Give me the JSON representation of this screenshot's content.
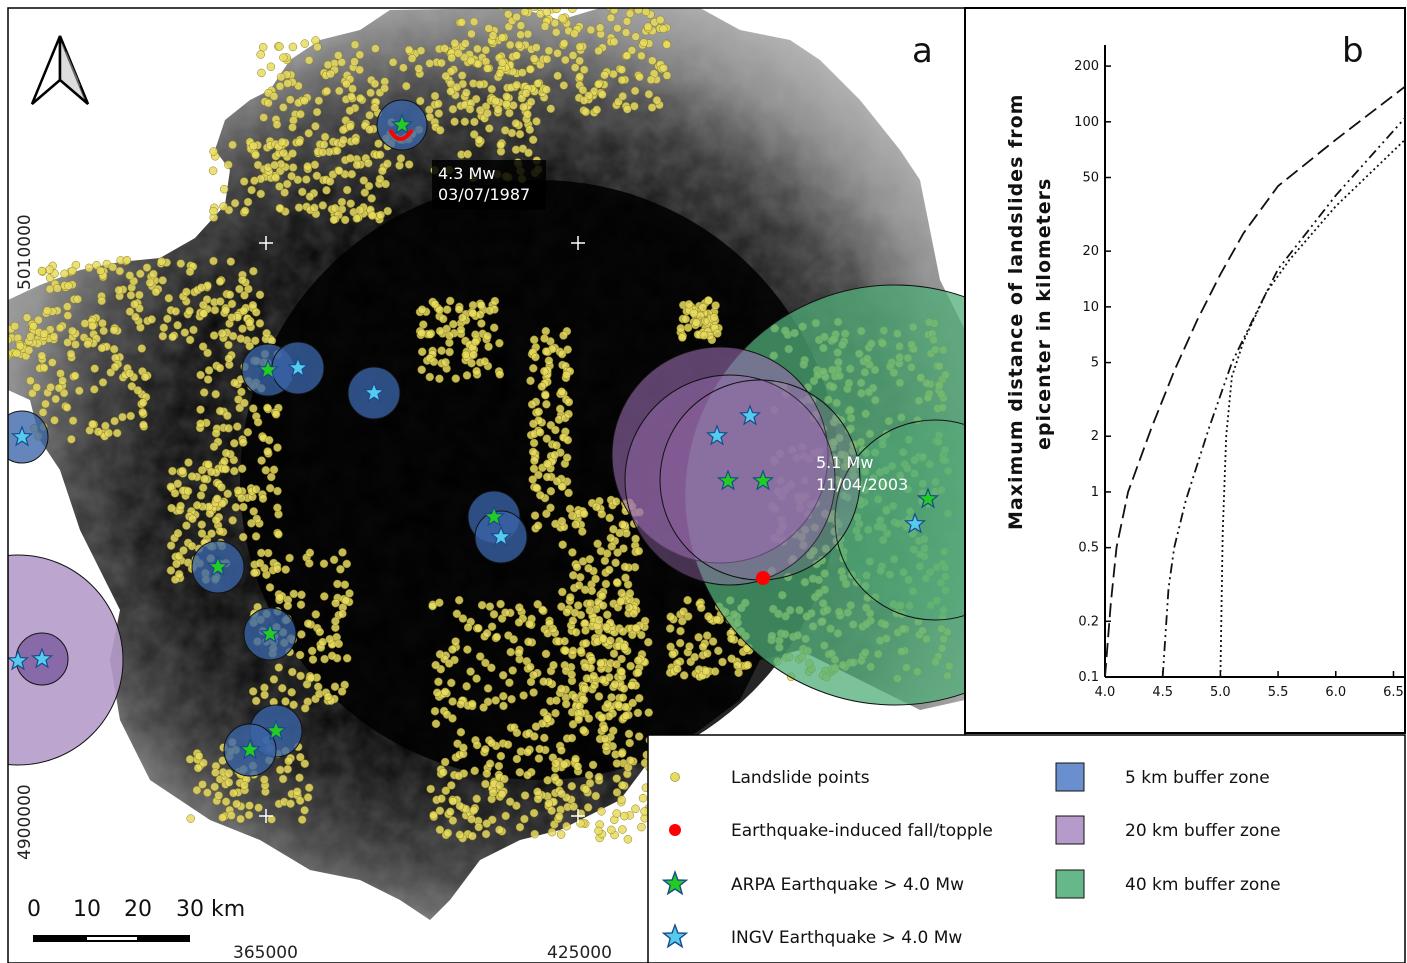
{
  "panel_a": {
    "letter": "a",
    "coords_x": [
      "365000",
      "425000"
    ],
    "coords_y": [
      "5010000",
      "4900000"
    ],
    "event_1987": {
      "magnitude": "4.3 Mw",
      "date": "03/07/1987"
    },
    "event_2003": {
      "magnitude": "5.1 Mw",
      "date": "11/04/2003"
    },
    "scalebar": {
      "labels": [
        "0",
        "10",
        "20",
        "30 km"
      ]
    }
  },
  "panel_b": {
    "letter": "b",
    "ylabel_line1": "Maximum distance of landslides from",
    "ylabel_line2": "epicenter in kilometers",
    "y_ticks": [
      "200",
      "100",
      "50",
      "20",
      "10",
      "5",
      "2",
      "1",
      "0.5",
      "0.2",
      "0.1"
    ],
    "x_ticks": [
      "4.0",
      "4.5",
      "5.0",
      "5.5",
      "6.0",
      "6.5"
    ]
  },
  "chart_data": {
    "type": "line",
    "title": "",
    "xlabel": "",
    "ylabel": "Maximum distance of landslides from epicenter in kilometers",
    "yscale": "log",
    "xlim": [
      4.0,
      6.6
    ],
    "ylim": [
      0.1,
      260
    ],
    "series": [
      {
        "style": "dashed",
        "x": [
          4.0,
          4.05,
          4.1,
          4.2,
          4.4,
          4.6,
          4.8,
          5.0,
          5.2,
          5.5,
          6.0,
          6.6
        ],
        "y": [
          0.1,
          0.25,
          0.5,
          1.0,
          2.2,
          4.5,
          8.5,
          15,
          25,
          45,
          80,
          155
        ]
      },
      {
        "style": "dash-dot",
        "x": [
          4.5,
          4.55,
          4.6,
          4.7,
          4.9,
          5.1,
          5.3,
          5.5,
          6.0,
          6.6
        ],
        "y": [
          0.1,
          0.3,
          0.5,
          0.9,
          2.2,
          5,
          9,
          16,
          40,
          105
        ]
      },
      {
        "style": "dotted",
        "x": [
          5.0,
          5.02,
          5.05,
          5.1,
          5.2,
          5.4,
          5.6,
          6.0,
          6.6
        ],
        "y": [
          0.1,
          0.6,
          2.0,
          4.2,
          6.5,
          12,
          18,
          35,
          80
        ]
      }
    ]
  },
  "legend": {
    "items": [
      {
        "label": "Landslide points",
        "symbol": "landslide-point",
        "color": "#e8dc60"
      },
      {
        "label": "Earthquake-induced fall/topple",
        "symbol": "red-dot",
        "color": "#ff0000"
      },
      {
        "label": "ARPA Earthquake > 4.0 Mw",
        "symbol": "green-star",
        "color": "#22cc22"
      },
      {
        "label": "INGV Earthquake > 4.0 Mw",
        "symbol": "cyan-star",
        "color": "#55ccee"
      },
      {
        "label": "5 km buffer zone",
        "symbol": "blue-swatch",
        "color": "#6a8fcf"
      },
      {
        "label": "20 km buffer zone",
        "symbol": "purple-swatch",
        "color": "#b59bc9"
      },
      {
        "label": "40 km buffer zone",
        "symbol": "green-swatch",
        "color": "#66b88a"
      }
    ]
  },
  "colors": {
    "landslide": "#e8dc60",
    "buffer5": "#3a64a8",
    "buffer20": "#9a6cb0",
    "buffer40": "#4fad78",
    "ingv_star": "#55ccee",
    "arpa_star": "#22cc22",
    "fall_topple": "#ff0000"
  }
}
